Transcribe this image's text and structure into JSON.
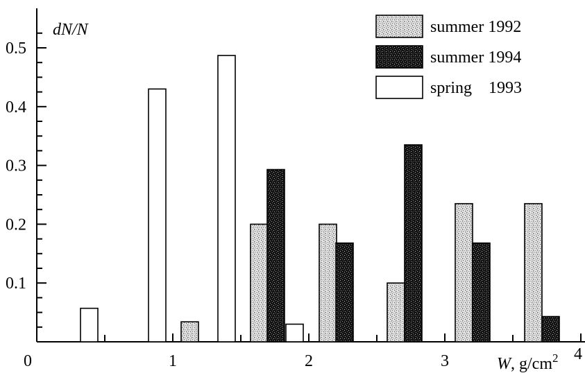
{
  "chart_data": {
    "type": "bar",
    "ylabel": "dN/N",
    "xlabel": "W, g/cm2",
    "x_tick_labels": [
      "0",
      "1",
      "2",
      "3",
      "4"
    ],
    "y_tick_labels": [
      "0.1",
      "0.2",
      "0.3",
      "0.4",
      "0.5"
    ],
    "xlim": [
      0,
      4
    ],
    "ylim": [
      0,
      0.55
    ],
    "bin_width": 0.5,
    "bins": [
      [
        0,
        0.5
      ],
      [
        0.5,
        1
      ],
      [
        1,
        1.5
      ],
      [
        1.5,
        2
      ],
      [
        2,
        2.5
      ],
      [
        2.5,
        3
      ],
      [
        3,
        3.5
      ],
      [
        3.5,
        4
      ]
    ],
    "series": [
      {
        "name": "summer 1992",
        "color": "#cfcfcf",
        "pattern": "light-stipple",
        "values": [
          0,
          0,
          0.034,
          0.2,
          0.2,
          0.1,
          0.235,
          0.235
        ]
      },
      {
        "name": "summer 1994",
        "color": "#1a1a1a",
        "pattern": "dark-stipple",
        "values": [
          0,
          0,
          0,
          0.293,
          0.168,
          0.335,
          0.168,
          0.043
        ]
      },
      {
        "name": "spring    1993",
        "color": "#ffffff",
        "pattern": "none",
        "values": [
          0.057,
          0.43,
          0.487,
          0.03,
          0,
          0,
          0,
          0
        ]
      }
    ],
    "legend_position": "top-right",
    "grid": false
  }
}
